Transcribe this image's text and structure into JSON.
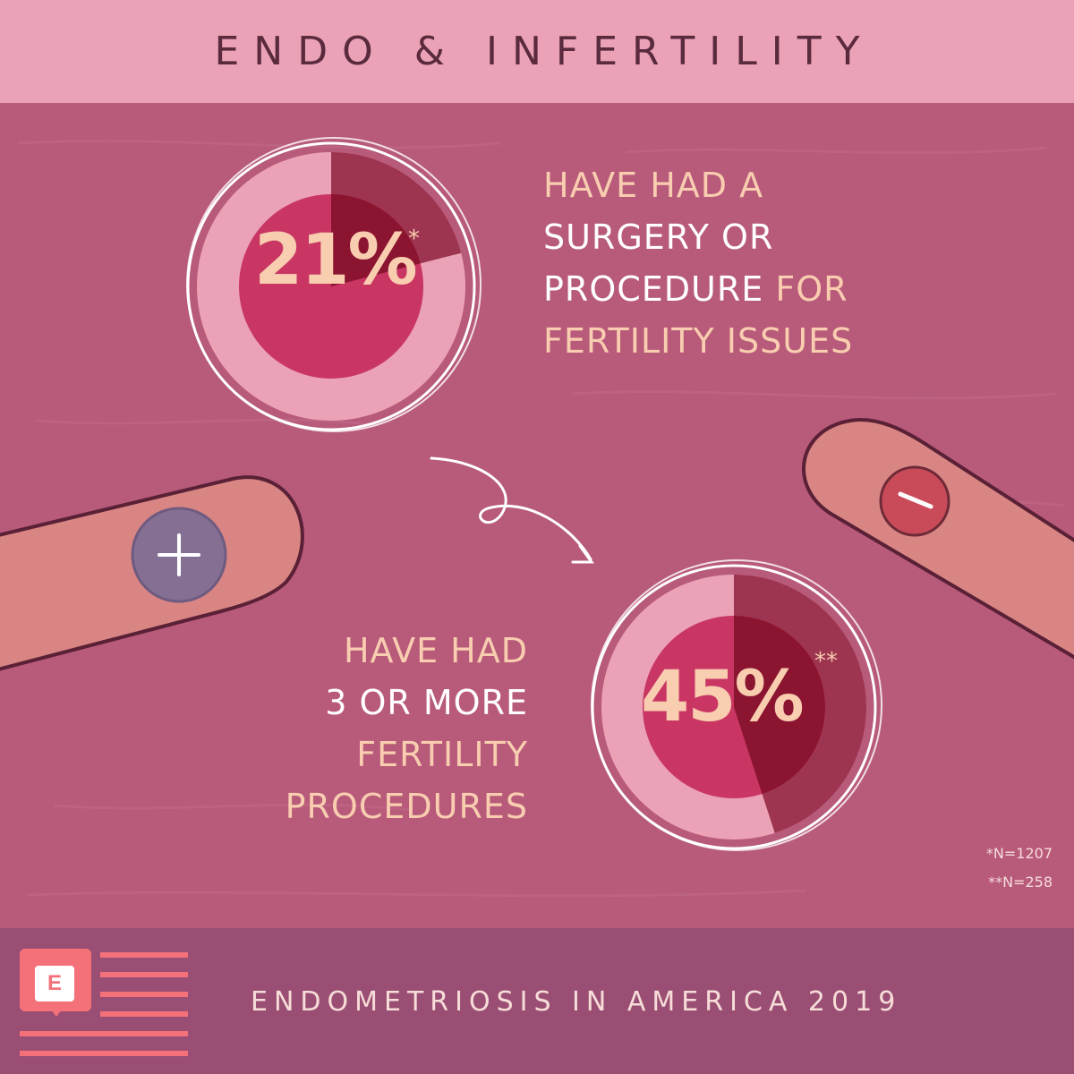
{
  "header": {
    "title": "ENDO & INFERTILITY"
  },
  "colors": {
    "background": "#b85a7a",
    "header_bar": "#eba2b6",
    "footer_bar": "#9a4e74",
    "pie_outer": "#eba2b6",
    "pie_center": "#c93664",
    "pie_slice": "#9e3550",
    "pie_slice_inner": "#8b1430",
    "accent_text": "#f8cdb0",
    "logo": "#f4717a"
  },
  "icons": {
    "left_finger": "plus-fingertip-icon",
    "right_finger": "minus-fingertip-icon",
    "arrow": "curly-arrow-icon",
    "logo": "endometriosis-logo-icon"
  },
  "chart_data": [
    {
      "type": "pie",
      "value_percent": 21,
      "label": "21%",
      "marker": "*",
      "caption_lines": [
        {
          "text": "HAVE HAD A",
          "tone": "peach"
        },
        {
          "text": "SURGERY OR",
          "tone": "white"
        },
        {
          "text": "PROCEDURE",
          "tone": "white",
          "suffix": " FOR",
          "suffix_tone": "peach"
        },
        {
          "text": "FERTILITY ISSUES",
          "tone": "peach"
        }
      ],
      "footnote": "*N=1207"
    },
    {
      "type": "pie",
      "value_percent": 45,
      "label": "45%",
      "marker": "**",
      "caption_lines": [
        {
          "text": "HAVE HAD",
          "tone": "peach"
        },
        {
          "text": "3 OR MORE",
          "tone": "white"
        },
        {
          "text": "FERTILITY",
          "tone": "peach"
        },
        {
          "text": "PROCEDURES",
          "tone": "peach"
        }
      ],
      "footnote": "**N=258"
    }
  ],
  "footer": {
    "title": "ENDOMETRIOSIS IN AMERICA 2019",
    "logo_letter": "E"
  }
}
